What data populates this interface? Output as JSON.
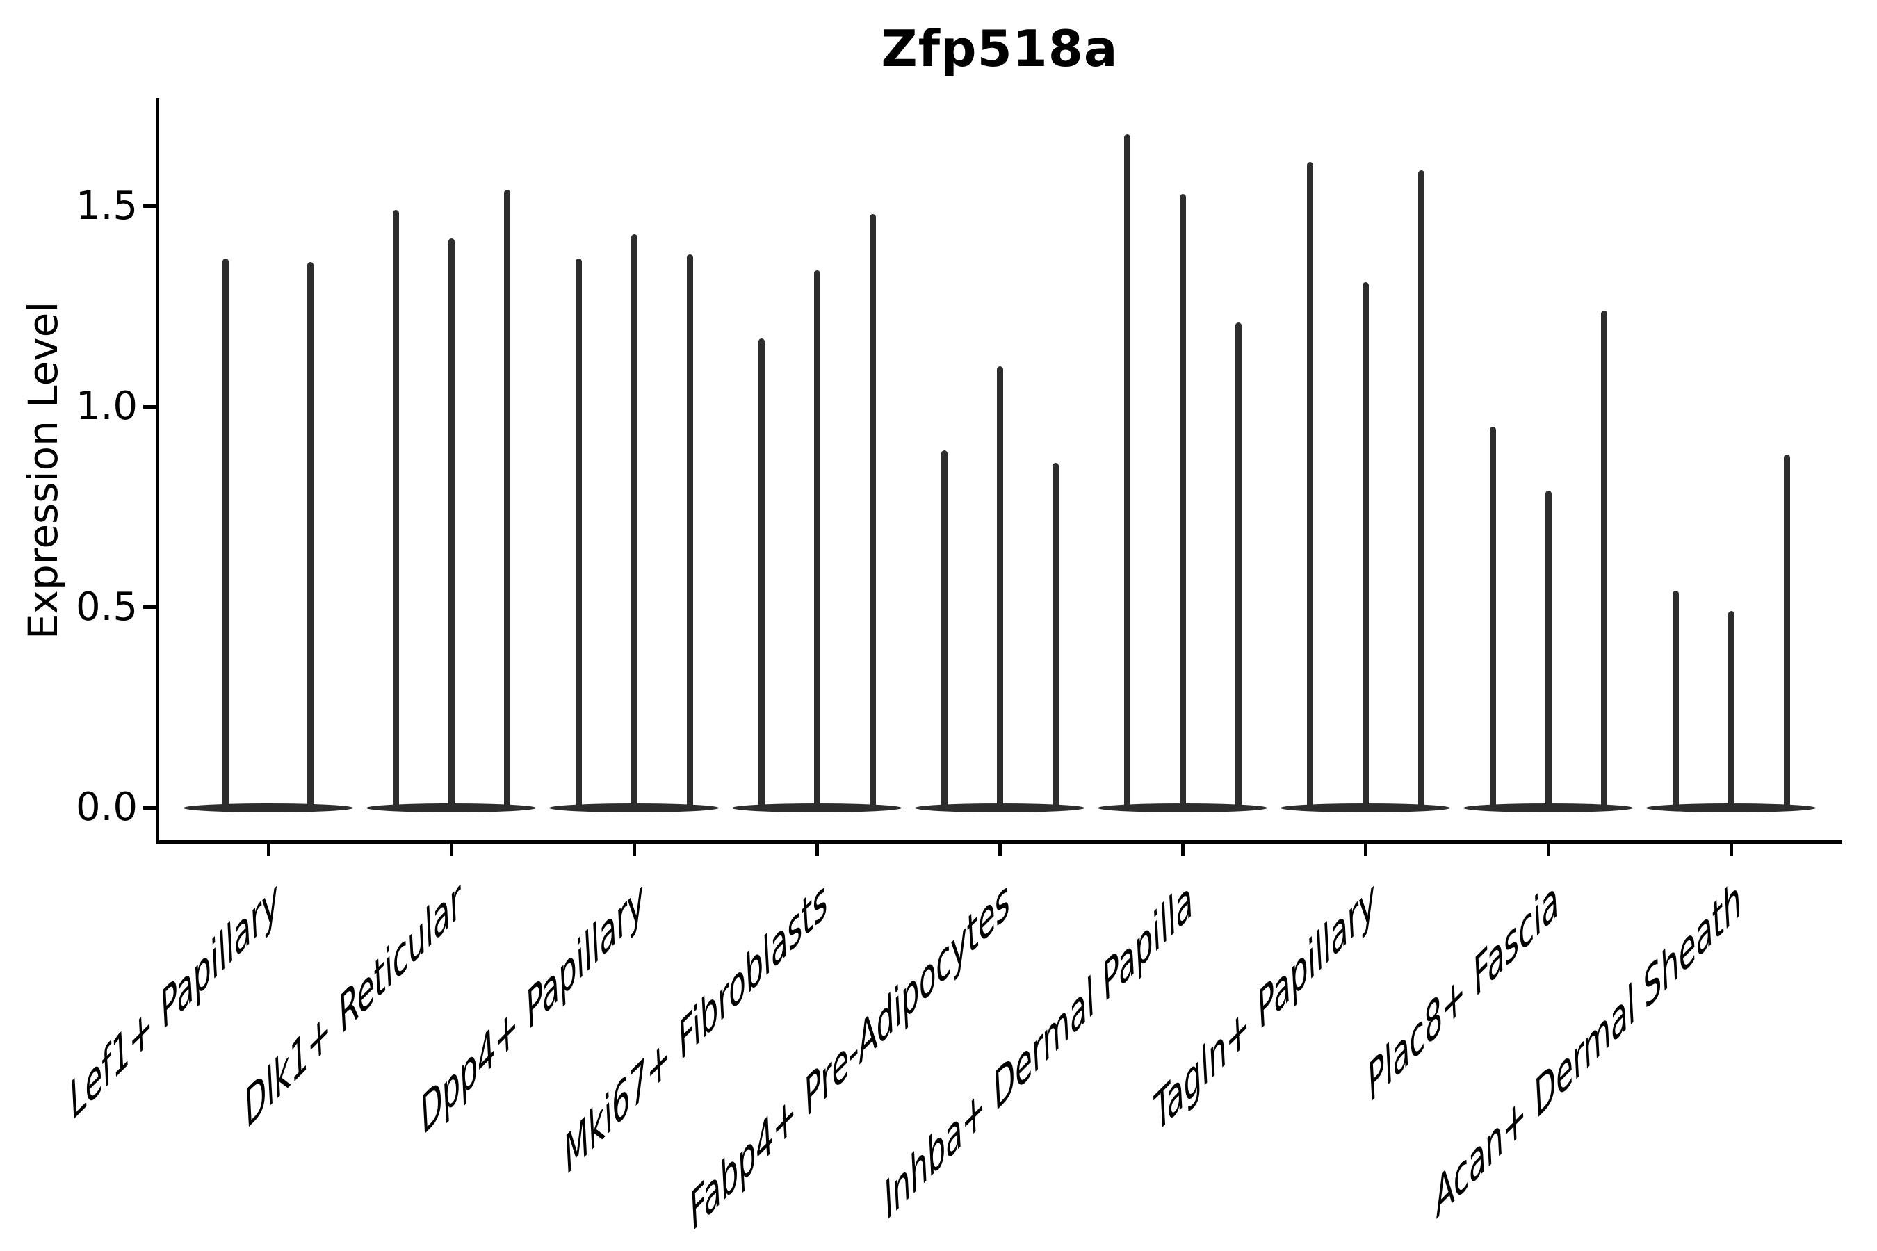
{
  "title": "Zfp518a",
  "ylabel": "Expression Level",
  "chart_data": {
    "type": "violin",
    "title": "Zfp518a",
    "xlabel": "",
    "ylabel": "Expression Level",
    "ylim": [
      -0.08,
      1.76
    ],
    "grid": false,
    "legend": null,
    "background": "#ffffff",
    "violin_color": "#2d2d2d",
    "axis_color": "#000000",
    "yticks": [
      {
        "label": "1.5",
        "value": 1.5
      },
      {
        "label": "1.0",
        "value": 1.0
      },
      {
        "label": "0.5",
        "value": 0.5
      },
      {
        "label": "0.0",
        "value": 0.0
      }
    ],
    "categories": [
      "Lef1+ Papillary",
      "Dlk1+ Reticular",
      "Dpp4+ Papillary",
      "Mki67+ Fibroblasts",
      "Fabp4+ Pre-Adipocytes",
      "Inhba+ Dermal Papilla",
      "Tagln+ Papillary",
      "Plac8+ Fascia",
      "Acan+ Dermal Sheath"
    ],
    "groups": [
      {
        "category": "Lef1+ Papillary",
        "violin_maxima": [
          1.37,
          1.36
        ]
      },
      {
        "category": "Dlk1+ Reticular",
        "violin_maxima": [
          1.49,
          1.42,
          1.54
        ]
      },
      {
        "category": "Dpp4+ Papillary",
        "violin_maxima": [
          1.37,
          1.43,
          1.38
        ]
      },
      {
        "category": "Mki67+ Fibroblasts",
        "violin_maxima": [
          1.17,
          1.34,
          1.48
        ]
      },
      {
        "category": "Fabp4+ Pre-Adipocytes",
        "violin_maxima": [
          0.89,
          1.1,
          0.86
        ]
      },
      {
        "category": "Inhba+ Dermal Papilla",
        "violin_maxima": [
          1.68,
          1.53,
          1.21
        ]
      },
      {
        "category": "Tagln+ Papillary",
        "violin_maxima": [
          1.61,
          1.31,
          1.59
        ]
      },
      {
        "category": "Plac8+ Fascia",
        "violin_maxima": [
          0.95,
          0.79,
          1.24
        ]
      },
      {
        "category": "Acan+ Dermal Sheath",
        "violin_maxima": [
          0.54,
          0.49,
          0.88
        ]
      }
    ],
    "note_baseline": "every violin has its bulk flattened at expression level 0"
  }
}
